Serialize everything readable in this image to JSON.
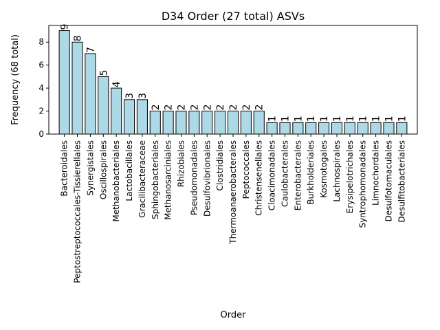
{
  "chart_data": {
    "type": "bar",
    "title": "D34 Order (27 total) ASVs",
    "xlabel": "Order",
    "ylabel": "Frequency (68 total)",
    "ylim": [
      0,
      9.45
    ],
    "yticks": [
      0,
      2,
      4,
      6,
      8
    ],
    "grid": false,
    "legend": "none",
    "bar_color": "#add8e6",
    "edge_color": "#000000",
    "categories": [
      "Bacteroidales",
      "Peptostreptococcales-Tissierellales",
      "Synergistales",
      "Oscillospirales",
      "Methanobacteriales",
      "Lactobacillales",
      "Gracilibacteraceae",
      "Sphingobacteriales",
      "Methanosarciniales",
      "Rhizobiales",
      "Pseudomonadales",
      "Desulfovibrionales",
      "Clostridiales",
      "Thermoanaerobacterales",
      "Peptococcales",
      "Christensenellales",
      "Cloacimonadales",
      "Caulobacterales",
      "Enterobacterales",
      "Burkholderiales",
      "Kosmotogales",
      "Lachnospirales",
      "Erysipelotrichales",
      "Syntrophomonadales",
      "Limnochordales",
      "Desulfotomaculales",
      "Desulfitobacteriales"
    ],
    "values": [
      9,
      8,
      7,
      5,
      4,
      3,
      3,
      2,
      2,
      2,
      2,
      2,
      2,
      2,
      2,
      2,
      1,
      1,
      1,
      1,
      1,
      1,
      1,
      1,
      1,
      1,
      1
    ]
  }
}
